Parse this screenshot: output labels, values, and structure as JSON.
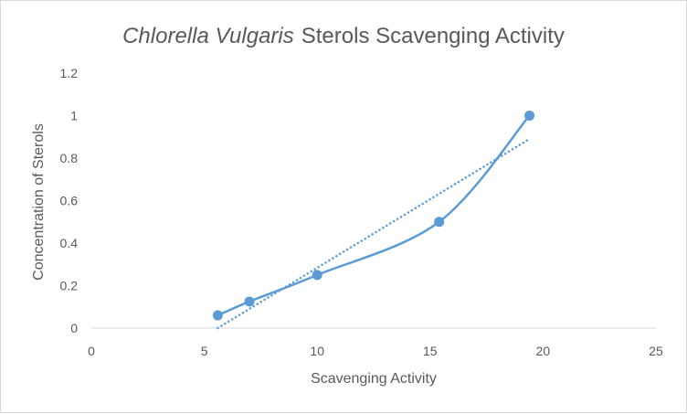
{
  "chart_data": {
    "type": "scatter",
    "title_italic": "Chlorella Vulgaris",
    "title_rest": "Sterols Scavenging Activity",
    "xlabel": "Scavenging Activity",
    "ylabel": "Concentration of Sterols",
    "xlim": [
      0,
      25
    ],
    "ylim": [
      0,
      1.2
    ],
    "x_ticks": [
      "0",
      "5",
      "10",
      "15",
      "20",
      "25"
    ],
    "y_ticks": [
      "0",
      "0.2",
      "0.4",
      "0.6",
      "0.8",
      "1",
      "1.2"
    ],
    "grid": false,
    "legend": "none",
    "series": [
      {
        "points": [
          {
            "x": 5.6,
            "y": 0.06
          },
          {
            "x": 7.0,
            "y": 0.125
          },
          {
            "x": 10.0,
            "y": 0.25
          },
          {
            "x": 15.4,
            "y": 0.5
          },
          {
            "x": 19.4,
            "y": 1.0
          }
        ],
        "line": "smooth",
        "color": "#5b9bd5"
      }
    ],
    "trendline": {
      "type": "linear",
      "style": "dotted",
      "color": "#5b9bd5",
      "from": {
        "x": 5.6,
        "y": 0.0
      },
      "to": {
        "x": 19.4,
        "y": 0.89
      }
    },
    "axis_color": "#d9d9d9"
  }
}
